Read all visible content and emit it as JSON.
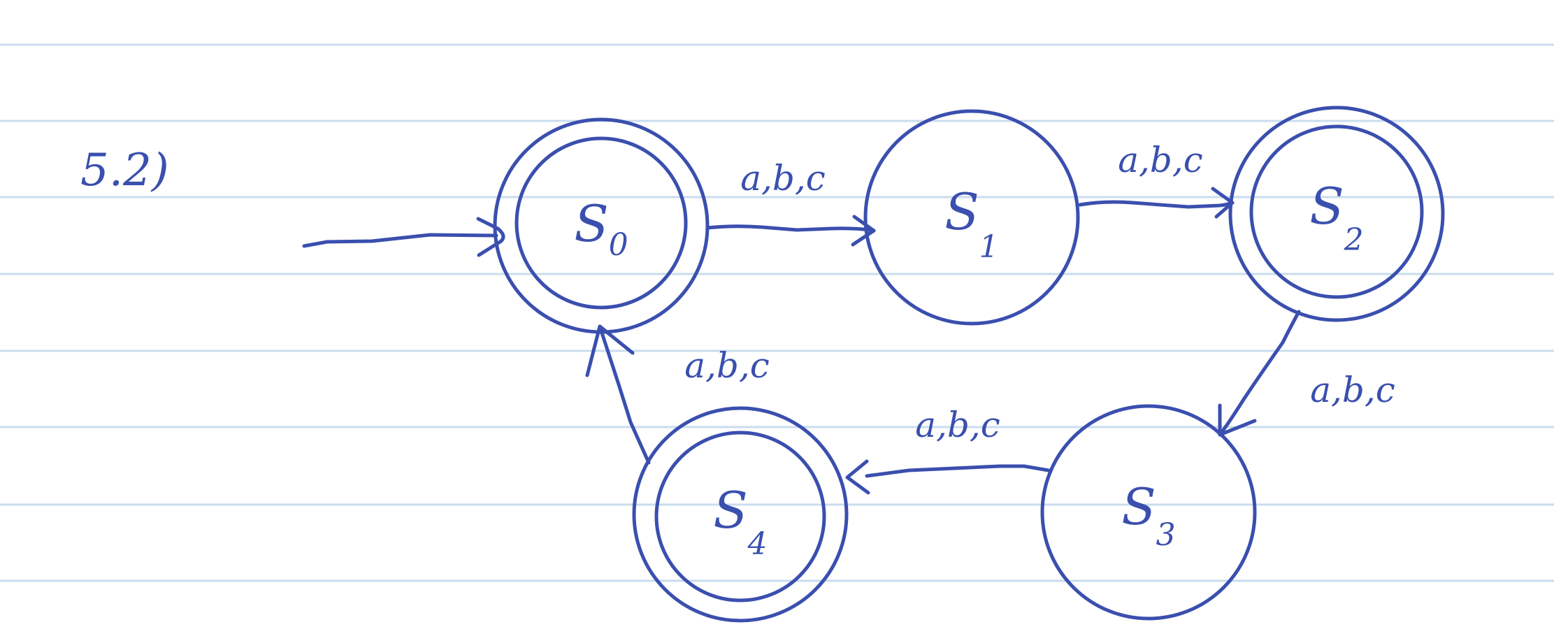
{
  "colors": {
    "ink": "#3a4fae",
    "ruled_line": "#c9dcef",
    "paper": "#ffffff"
  },
  "problem_label": "5.2)",
  "states": [
    {
      "id": "s0",
      "base": "S",
      "sub": "0",
      "accepting": true,
      "initial": true
    },
    {
      "id": "s1",
      "base": "S",
      "sub": "1",
      "accepting": false,
      "initial": false
    },
    {
      "id": "s2",
      "base": "S",
      "sub": "2",
      "accepting": true,
      "initial": false
    },
    {
      "id": "s3",
      "base": "S",
      "sub": "3",
      "accepting": false,
      "initial": false
    },
    {
      "id": "s4",
      "base": "S",
      "sub": "4",
      "accepting": true,
      "initial": false
    }
  ],
  "transitions": [
    {
      "from": "s0",
      "to": "s1",
      "label": "a,b,c"
    },
    {
      "from": "s1",
      "to": "s2",
      "label": "a,b,c"
    },
    {
      "from": "s2",
      "to": "s3",
      "label": "a,b,c"
    },
    {
      "from": "s3",
      "to": "s4",
      "label": "a,b,c"
    },
    {
      "from": "s4",
      "to": "s0",
      "label": "a,b,c"
    }
  ]
}
